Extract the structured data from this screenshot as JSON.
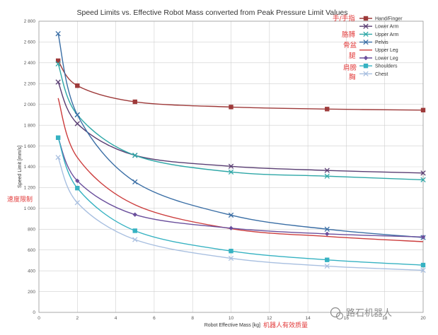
{
  "chart_data": {
    "type": "line",
    "title": "Speed Limits vs. Effective Robot Mass converted from Peak Pressure Limit Values",
    "xlabel": "Robot Effective Mass [kg]",
    "xlabel_cn": "机器人有效质量",
    "ylabel": "Speed Limit [mm/s]",
    "ylabel_cn": "速度限制",
    "xlim": [
      0,
      20
    ],
    "ylim": [
      0,
      2800
    ],
    "x_ticks": [
      "0",
      "2",
      "4",
      "6",
      "8",
      "10",
      "12",
      "14",
      "16",
      "18",
      "20"
    ],
    "y_ticks": [
      "0",
      "200",
      "400",
      "600",
      "800",
      "1 000",
      "1 200",
      "1 400",
      "1 600",
      "1 800",
      "2 000",
      "2 200",
      "2 400",
      "2 600",
      "2 800"
    ],
    "grid": true,
    "legend_position": "top-right",
    "x": [
      1,
      2,
      5,
      10,
      15,
      20
    ],
    "series": [
      {
        "name": "Hand/Finger",
        "name_cn": "手/手指",
        "color": "#9e3a3a",
        "marker": "square",
        "values": [
          2420,
          2180,
          2025,
          1975,
          1955,
          1945
        ]
      },
      {
        "name": "Lower Arm",
        "name_cn": "胳膊",
        "color": "#5a3e73",
        "marker": "x",
        "values": [
          2215,
          1815,
          1510,
          1405,
          1365,
          1340
        ]
      },
      {
        "name": "Upper Arm",
        "name_cn": "胳膊",
        "color": "#2ea7a7",
        "marker": "x",
        "values": [
          2390,
          1900,
          1510,
          1350,
          1310,
          1275
        ]
      },
      {
        "name": "Pelvis",
        "name_cn": "骨盆",
        "color": "#3a6ea5",
        "marker": "x",
        "values": [
          2680,
          1900,
          1255,
          935,
          800,
          720
        ]
      },
      {
        "name": "Upper Leg",
        "name_cn": "腿",
        "color": "#cc3d3d",
        "marker": "none",
        "values": [
          2060,
          1490,
          1035,
          805,
          730,
          680
        ]
      },
      {
        "name": "Lower Leg",
        "name_cn": "腿",
        "color": "#6a4f9c",
        "marker": "diamond",
        "values": [
          1680,
          1265,
          940,
          810,
          755,
          725
        ]
      },
      {
        "name": "Shoulders",
        "name_cn": "肩膀",
        "color": "#36b2c2",
        "marker": "square",
        "values": [
          1680,
          1195,
          785,
          590,
          505,
          455
        ]
      },
      {
        "name": "Chest",
        "name_cn": "胸",
        "color": "#a8bfe0",
        "marker": "x",
        "values": [
          1490,
          1055,
          700,
          520,
          445,
          405
        ]
      }
    ]
  },
  "watermark": {
    "text": "路石机器人"
  }
}
